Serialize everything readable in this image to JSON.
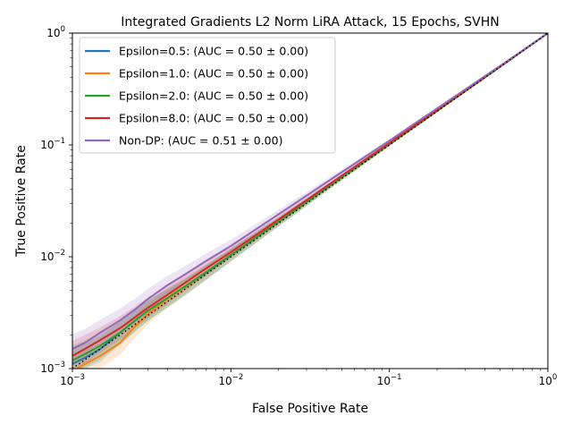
{
  "chart_data": {
    "type": "line",
    "title": "Integrated Gradients L2 Norm LiRA Attack, 15 Epochs, SVHN",
    "xlabel": "False Positive Rate",
    "ylabel": "True Positive Rate",
    "xscale": "log",
    "yscale": "log",
    "xlim": [
      0.001,
      1
    ],
    "ylim": [
      0.001,
      1
    ],
    "x_ticks": [
      {
        "base": "10",
        "exp": "−3",
        "value": 0.001
      },
      {
        "base": "10",
        "exp": "−2",
        "value": 0.01
      },
      {
        "base": "10",
        "exp": "−1",
        "value": 0.1
      },
      {
        "base": "10",
        "exp": "0",
        "value": 1
      }
    ],
    "y_ticks": [
      {
        "base": "10",
        "exp": "−3",
        "value": 0.001
      },
      {
        "base": "10",
        "exp": "−2",
        "value": 0.01
      },
      {
        "base": "10",
        "exp": "−1",
        "value": 0.1
      },
      {
        "base": "10",
        "exp": "0",
        "value": 1
      }
    ],
    "grid": false,
    "legend_position": "top-left",
    "baseline": {
      "style": "dotted",
      "color": "#000000",
      "x": [
        0.001,
        1
      ],
      "y": [
        0.001,
        1
      ]
    },
    "series": [
      {
        "name": "Epsilon=0.5: (AUC = 0.50 ± 0.00)",
        "color": "#1f77b4",
        "x": [
          0.001,
          0.0012,
          0.0015,
          0.002,
          0.0025,
          0.003,
          0.004,
          0.005,
          0.007,
          0.01,
          0.02,
          0.05,
          0.1,
          0.2,
          0.5,
          1
        ],
        "y": [
          0.0011,
          0.00125,
          0.0015,
          0.0021,
          0.0027,
          0.0033,
          0.0043,
          0.0052,
          0.0072,
          0.0103,
          0.0205,
          0.051,
          0.101,
          0.201,
          0.501,
          1
        ]
      },
      {
        "name": "Epsilon=1.0: (AUC = 0.50 ± 0.00)",
        "color": "#ff7f0e",
        "x": [
          0.001,
          0.0012,
          0.0015,
          0.002,
          0.0025,
          0.003,
          0.004,
          0.005,
          0.007,
          0.01,
          0.02,
          0.05,
          0.1,
          0.2,
          0.5,
          1
        ],
        "y": [
          0.00095,
          0.0011,
          0.0013,
          0.0017,
          0.0024,
          0.0031,
          0.0042,
          0.0052,
          0.0073,
          0.0104,
          0.0206,
          0.051,
          0.101,
          0.201,
          0.501,
          1
        ]
      },
      {
        "name": "Epsilon=2.0: (AUC = 0.50 ± 0.00)",
        "color": "#2ca02c",
        "x": [
          0.001,
          0.0012,
          0.0015,
          0.002,
          0.0025,
          0.003,
          0.004,
          0.005,
          0.007,
          0.01,
          0.02,
          0.05,
          0.1,
          0.2,
          0.5,
          1
        ],
        "y": [
          0.00118,
          0.00135,
          0.0016,
          0.0021,
          0.0027,
          0.0033,
          0.0043,
          0.0053,
          0.0073,
          0.0104,
          0.0206,
          0.0512,
          0.1015,
          0.201,
          0.501,
          1
        ]
      },
      {
        "name": "Epsilon=8.0: (AUC = 0.50 ± 0.00)",
        "color": "#d62728",
        "x": [
          0.001,
          0.0012,
          0.0015,
          0.002,
          0.0025,
          0.003,
          0.004,
          0.005,
          0.007,
          0.01,
          0.02,
          0.05,
          0.1,
          0.2,
          0.5,
          1
        ],
        "y": [
          0.0013,
          0.0015,
          0.0018,
          0.0023,
          0.0029,
          0.0035,
          0.0046,
          0.0057,
          0.0079,
          0.011,
          0.0215,
          0.053,
          0.104,
          0.205,
          0.503,
          1
        ]
      },
      {
        "name": "Non-DP: (AUC = 0.51 ± 0.00)",
        "color": "#9467bd",
        "x": [
          0.001,
          0.0012,
          0.0015,
          0.002,
          0.0025,
          0.003,
          0.004,
          0.005,
          0.007,
          0.01,
          0.02,
          0.05,
          0.1,
          0.2,
          0.5,
          1
        ],
        "y": [
          0.0015,
          0.0017,
          0.0021,
          0.0027,
          0.0034,
          0.0042,
          0.0056,
          0.0068,
          0.0092,
          0.0125,
          0.024,
          0.057,
          0.109,
          0.212,
          0.51,
          1
        ]
      }
    ]
  }
}
